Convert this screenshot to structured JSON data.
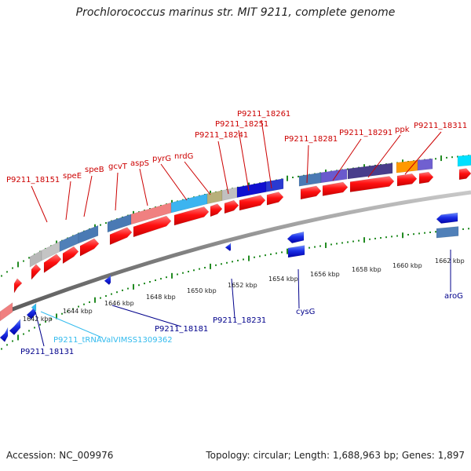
{
  "title": "Prochlorococcus marinus str. MIT 9211, complete genome",
  "accession_text": "Accession: NC_009976",
  "summary_text": "Topology: circular; Length: 1,688,963 bp; Genes: 1,897",
  "colors": {
    "forward_label": "#cc0000",
    "reverse_label": "#00008b",
    "trna_label": "#33bbee",
    "axis": "#808080",
    "tick": "#228b22"
  },
  "scale_labels": [
    "1642 kbp",
    "1644 kbp",
    "1646 kbp",
    "1648 kbp",
    "1650 kbp",
    "1652 kbp",
    "1654 kbp",
    "1656 kbp",
    "1658 kbp",
    "1660 kbp",
    "1662 kbp"
  ],
  "forward_genes": [
    "P9211_18151",
    "speE",
    "speB",
    "gcvT",
    "aspS",
    "pyrG",
    "nrdG",
    "P9211_18241",
    "P9211_18251",
    "P9211_18261",
    "P9211_18281",
    "P9211_18291",
    "ppk",
    "P9211_18311"
  ],
  "reverse_genes": [
    "P9211_18131",
    "P9211_tRNAValVIMSS1309362",
    "P9211_18181",
    "P9211_18231",
    "cysG",
    "aroG"
  ]
}
